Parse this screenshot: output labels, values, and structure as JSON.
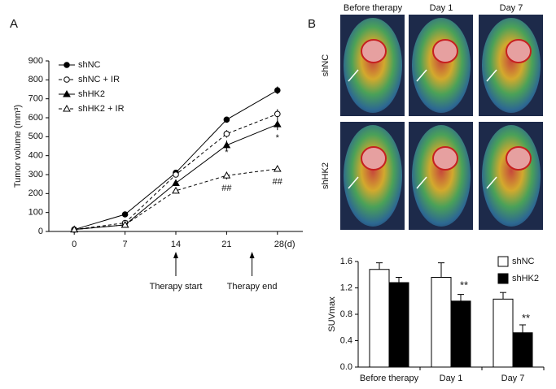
{
  "panels": [
    "A",
    "B"
  ],
  "images": {
    "columns": [
      "Before therapy",
      "Day 1",
      "Day 7"
    ],
    "rows": [
      "shNC",
      "shHK2"
    ]
  },
  "chart_data": [
    {
      "type": "line",
      "ylabel": "Tumor volume (mm³)",
      "x": [
        0,
        7,
        14,
        21,
        28
      ],
      "xlim": [
        -3.5,
        31.5
      ],
      "xticks": [
        0,
        7,
        14,
        21,
        {
          "value": 28,
          "label": "28(d)"
        }
      ],
      "ylim": [
        0,
        900
      ],
      "yticks": [
        0,
        100,
        200,
        300,
        400,
        500,
        600,
        700,
        800,
        900
      ],
      "series": [
        {
          "name": "shNC",
          "color": "#000000",
          "marker": "circle",
          "filled": true,
          "dashed": false,
          "values": [
            10,
            90,
            310,
            590,
            745
          ],
          "errors": [
            3,
            5,
            10,
            10,
            20
          ]
        },
        {
          "name": "shNC + IR",
          "color": "#000000",
          "marker": "circle",
          "filled": false,
          "dashed": true,
          "values": [
            10,
            45,
            300,
            515,
            620
          ],
          "errors": [
            3,
            5,
            10,
            20,
            25
          ]
        },
        {
          "name": "shHK2",
          "color": "#000000",
          "marker": "triangle",
          "filled": true,
          "dashed": false,
          "values": [
            10,
            35,
            255,
            455,
            565
          ],
          "errors": [
            3,
            5,
            15,
            25,
            30
          ]
        },
        {
          "name": "shHK2 + IR",
          "color": "#000000",
          "marker": "triangle",
          "filled": false,
          "dashed": true,
          "values": [
            10,
            35,
            215,
            295,
            330
          ],
          "errors": [
            3,
            5,
            15,
            20,
            15
          ]
        }
      ],
      "annotations": [
        {
          "text": "*",
          "x": 21,
          "y": 416
        },
        {
          "text": "##",
          "x": 21,
          "y": 227
        },
        {
          "text": "*",
          "x": 28,
          "y": 493
        },
        {
          "text": "##",
          "x": 28,
          "y": 262
        }
      ],
      "arrows": [
        {
          "text": "Therapy start",
          "x": 14
        },
        {
          "text": "Therapy end",
          "x": 24.5
        }
      ]
    },
    {
      "type": "bar",
      "ylabel": "SUVmax",
      "categories": [
        "Before therapy",
        "Day 1",
        "Day 7"
      ],
      "ylim": [
        0,
        1.6
      ],
      "yticks": [
        {
          "value": 0,
          "label": "0.0"
        },
        0.4,
        0.8,
        1.2,
        1.6
      ],
      "series": [
        {
          "name": "shNC",
          "color": "#ffffff",
          "values": [
            1.48,
            1.36,
            1.03
          ],
          "errors": [
            0.1,
            0.22,
            0.1
          ]
        },
        {
          "name": "shHK2",
          "color": "#000000",
          "values": [
            1.28,
            1.0,
            0.52
          ],
          "errors": [
            0.08,
            0.1,
            0.12
          ]
        }
      ],
      "annotations": [
        {
          "text": "**",
          "category": "Day 1",
          "y": 1.23
        },
        {
          "text": "**",
          "category": "Day 7",
          "y": 0.73
        }
      ]
    }
  ]
}
